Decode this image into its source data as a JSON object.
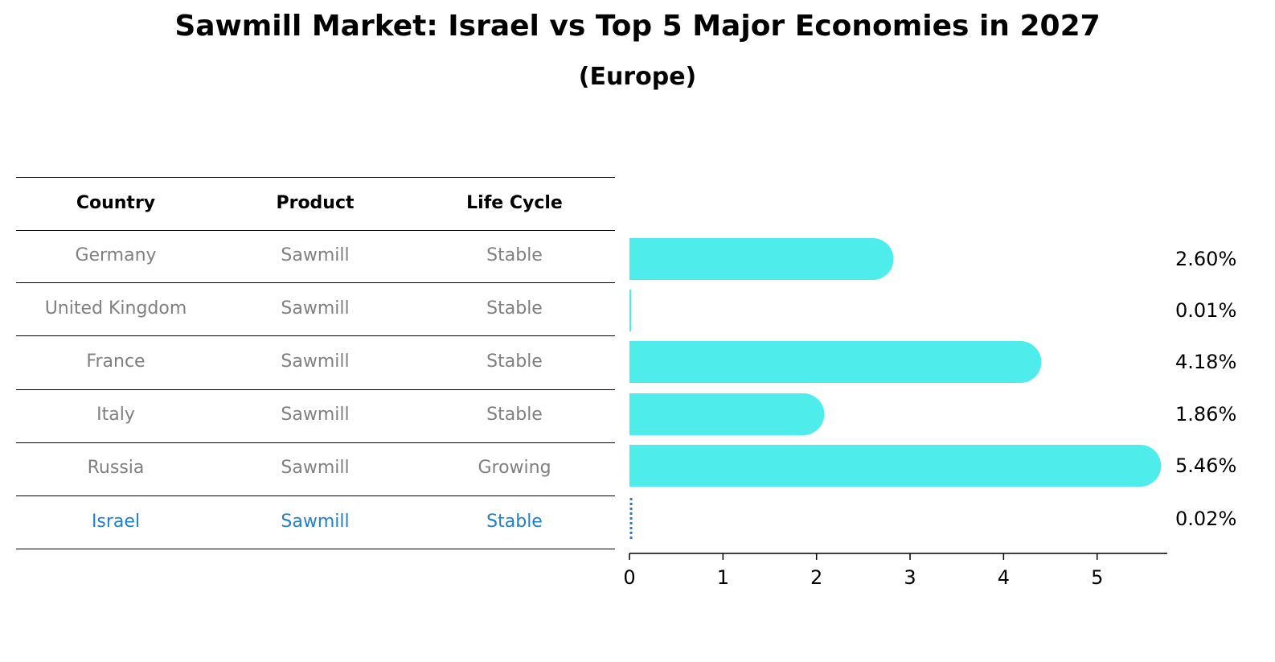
{
  "header": {
    "title": "Sawmill Market: Israel vs Top 5 Major Economies in 2027",
    "subtitle": "(Europe)"
  },
  "table": {
    "columns": [
      "Country",
      "Product",
      "Life Cycle"
    ],
    "rows": [
      {
        "country": "Germany",
        "product": "Sawmill",
        "life_cycle": "Stable"
      },
      {
        "country": "United Kingdom",
        "product": "Sawmill",
        "life_cycle": "Stable"
      },
      {
        "country": "France",
        "product": "Sawmill",
        "life_cycle": "Stable"
      },
      {
        "country": "Italy",
        "product": "Sawmill",
        "life_cycle": "Stable"
      },
      {
        "country": "Russia",
        "product": "Sawmill",
        "life_cycle": "Growing"
      },
      {
        "country": "Israel",
        "product": "Sawmill",
        "life_cycle": "Stable"
      }
    ],
    "highlight_row": "Israel",
    "text_color": "#808080",
    "highlight_color": "#1f7fd6"
  },
  "chart_data": {
    "type": "bar",
    "orientation": "horizontal",
    "categories": [
      "Germany",
      "United Kingdom",
      "France",
      "Italy",
      "Russia",
      "Israel"
    ],
    "values": [
      2.6,
      0.01,
      4.18,
      1.86,
      5.46,
      0.02
    ],
    "value_labels": [
      "2.60%",
      "0.01%",
      "4.18%",
      "1.86%",
      "5.46%",
      "0.02%"
    ],
    "xlim": [
      0,
      5.75
    ],
    "xticks": [
      0,
      1,
      2,
      3,
      4,
      5
    ],
    "bar_color": "#4eecea",
    "highlight_color": "#1f7fd6",
    "grid": false
  }
}
